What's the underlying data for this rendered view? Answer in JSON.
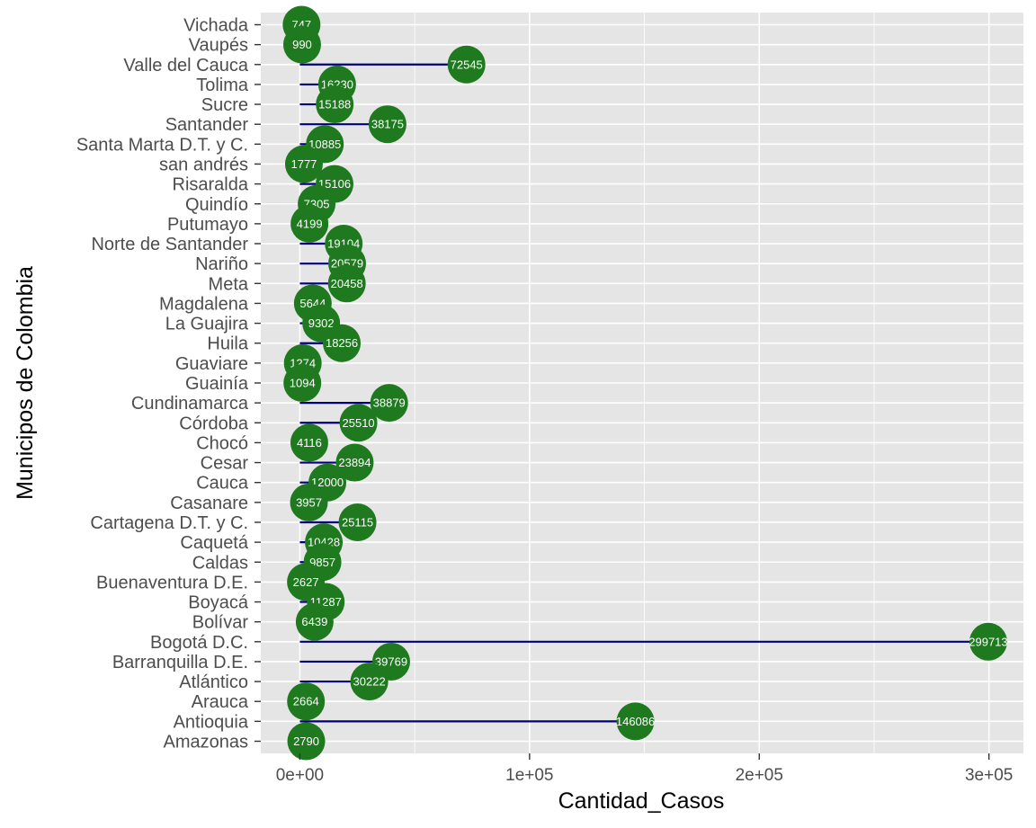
{
  "chart_data": {
    "type": "lollipop",
    "xlabel": "Cantidad_Casos",
    "ylabel": "Municipos de Colombia",
    "xlim": [
      -17000,
      315000
    ],
    "x_ticks": [
      0,
      100000,
      200000,
      300000
    ],
    "x_tick_labels": [
      "0e+00",
      "1e+05",
      "2e+05",
      "3e+05"
    ],
    "grid": true,
    "colors": {
      "panel": "#e5e5e5",
      "segment": "#00007f",
      "point": "#1f7a1f",
      "label": "#ffffff"
    },
    "categories": [
      "Vichada",
      "Vaupés",
      "Valle del Cauca",
      "Tolima",
      "Sucre",
      "Santander",
      "Santa Marta D.T. y C.",
      "san andrés",
      "Risaralda",
      "Quindío",
      "Putumayo",
      "Norte de Santander",
      "Nariño",
      "Meta",
      "Magdalena",
      "La Guajira",
      "Huila",
      "Guaviare",
      "Guainía",
      "Cundinamarca",
      "Córdoba",
      "Chocó",
      "Cesar",
      "Cauca",
      "Casanare",
      "Cartagena D.T. y C.",
      "Caquetá",
      "Caldas",
      "Buenaventura D.E.",
      "Boyacá",
      "Bolívar",
      "Bogotá D.C.",
      "Barranquilla D.E.",
      "Atlántico",
      "Arauca",
      "Antioquia",
      "Amazonas"
    ],
    "values": [
      747,
      990,
      72545,
      16230,
      15188,
      38175,
      10885,
      1777,
      15106,
      7305,
      4199,
      19104,
      20579,
      20458,
      5644,
      9302,
      18256,
      1274,
      1094,
      38879,
      25510,
      4116,
      23894,
      12000,
      3957,
      25115,
      10428,
      9857,
      2627,
      11287,
      6439,
      299713,
      39769,
      30222,
      2664,
      146086,
      2790
    ]
  }
}
